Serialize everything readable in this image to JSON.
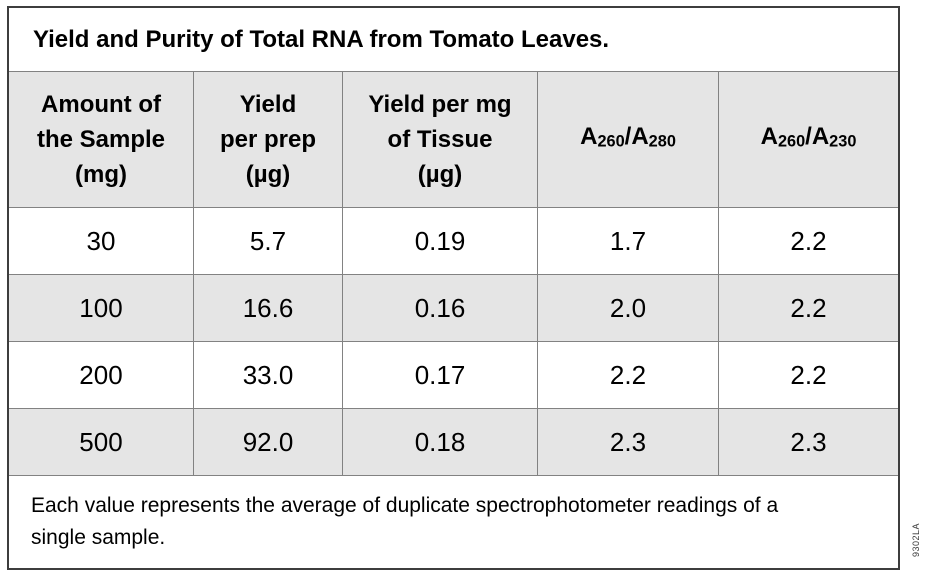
{
  "title": "Yield and Purity of Total RNA from Tomato Leaves.",
  "table": {
    "columns": [
      {
        "id": "amount-of-sample",
        "label": "Amount of the Sample (mg)",
        "lines": [
          [
            {
              "t": "Amount of"
            }
          ],
          [
            {
              "t": "the Sample"
            }
          ],
          [
            {
              "t": "(mg)"
            }
          ]
        ]
      },
      {
        "id": "yield-per-prep",
        "label": "Yield per prep (µg)",
        "lines": [
          [
            {
              "t": "Yield"
            }
          ],
          [
            {
              "t": "per prep"
            }
          ],
          [
            {
              "t": "(µg)"
            }
          ]
        ]
      },
      {
        "id": "yield-per-mg-tissue",
        "label": "Yield per mg of Tissue (µg)",
        "lines": [
          [
            {
              "t": "Yield per mg"
            }
          ],
          [
            {
              "t": "of Tissue"
            }
          ],
          [
            {
              "t": "(µg)"
            }
          ]
        ]
      },
      {
        "id": "a260-a280",
        "label": "A260/A280",
        "lines": [
          [
            {
              "t": "A"
            },
            {
              "t": "260",
              "sub": true
            },
            {
              "t": "/A"
            },
            {
              "t": "280",
              "sub": true
            }
          ]
        ]
      },
      {
        "id": "a260-a230",
        "label": "A260/A230",
        "lines": [
          [
            {
              "t": "A"
            },
            {
              "t": "260",
              "sub": true
            },
            {
              "t": "/A"
            },
            {
              "t": "230",
              "sub": true
            }
          ]
        ]
      }
    ],
    "rows": [
      [
        "30",
        "5.7",
        "0.19",
        "1.7",
        "2.2"
      ],
      [
        "100",
        "16.6",
        "0.16",
        "2.0",
        "2.2"
      ],
      [
        "200",
        "33.0",
        "0.17",
        "2.2",
        "2.2"
      ],
      [
        "500",
        "92.0",
        "0.18",
        "2.3",
        "2.3"
      ]
    ]
  },
  "chart_data": {
    "type": "table",
    "title": "Yield and Purity of Total RNA from Tomato Leaves.",
    "columns": [
      "Amount of the Sample (mg)",
      "Yield per prep (µg)",
      "Yield per mg of Tissue (µg)",
      "A260/A280",
      "A260/A230"
    ],
    "rows": [
      [
        30,
        5.7,
        0.19,
        1.7,
        2.2
      ],
      [
        100,
        16.6,
        0.16,
        2.0,
        2.2
      ],
      [
        200,
        33.0,
        0.17,
        2.2,
        2.2
      ],
      [
        500,
        92.0,
        0.18,
        2.3,
        2.3
      ]
    ]
  },
  "footnote": "Each value represents the average of duplicate spectrophotometer readings of a single sample.",
  "figure_code": "9302LA",
  "colors": {
    "fill_shaded": "#e5e5e5",
    "grid_line": "#828282",
    "outer_border": "#3d3d3d",
    "text": "#000000"
  }
}
